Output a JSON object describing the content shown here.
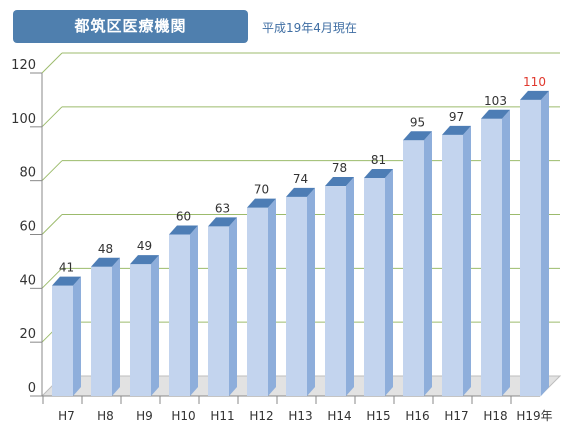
{
  "title_box": {
    "label": "都筑区医療機関"
  },
  "subtitle": "平成19年4月現在",
  "chart_data": {
    "type": "bar",
    "categories": [
      "H7",
      "H8",
      "H9",
      "H10",
      "H11",
      "H12",
      "H13",
      "H14",
      "H15",
      "H16",
      "H17",
      "H18",
      "H19年"
    ],
    "values": [
      41,
      48,
      49,
      60,
      63,
      70,
      74,
      78,
      81,
      95,
      97,
      103,
      110
    ],
    "ylim": [
      0,
      120
    ],
    "yticks": [
      0,
      20,
      40,
      60,
      80,
      100,
      120
    ],
    "highlight_index": 12,
    "colors": {
      "bar_front": "#c3d4ee",
      "bar_side": "#8eaedb",
      "bar_top": "#4d7db5",
      "grid": "#9cbb6c",
      "highlight_label": "#e0392e",
      "floor": "#e2e2e2"
    }
  }
}
